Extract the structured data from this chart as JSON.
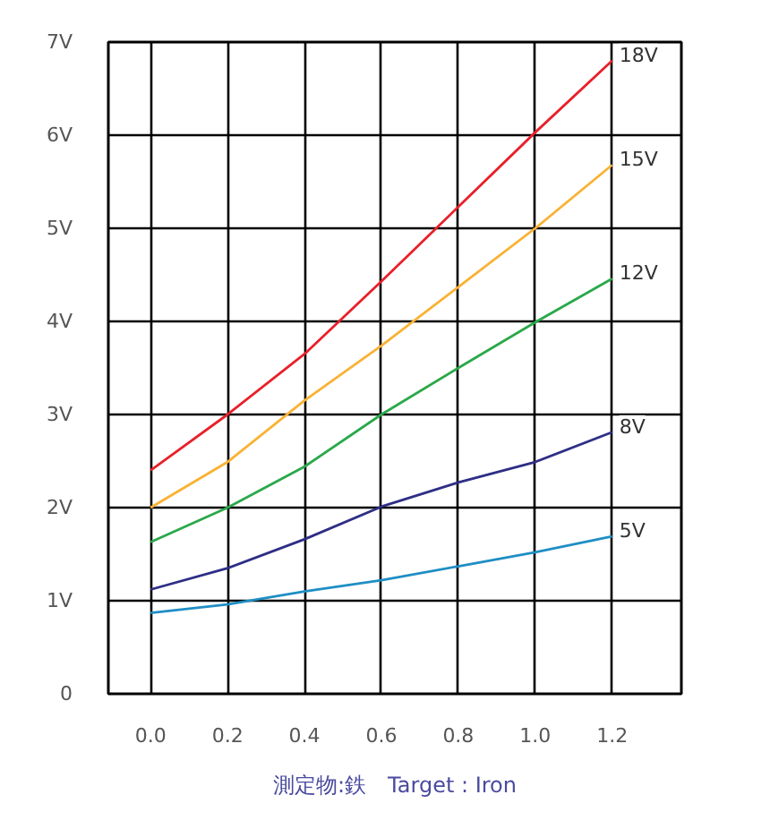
{
  "chart_data": {
    "type": "line",
    "xlabel": "測定物:鉄　Target : Iron",
    "x": [
      0.0,
      0.2,
      0.4,
      0.6,
      0.8,
      1.0,
      1.2
    ],
    "series": [
      {
        "name": "18V",
        "color": "#e8202a",
        "values": [
          2.4,
          3.0,
          3.65,
          4.43,
          5.23,
          6.03,
          6.8
        ]
      },
      {
        "name": "15V",
        "color": "#f9b233",
        "values": [
          2.0,
          2.49,
          3.15,
          3.74,
          4.37,
          5.0,
          5.68
        ]
      },
      {
        "name": "12V",
        "color": "#2aa84a",
        "values": [
          1.63,
          2.0,
          2.44,
          3.0,
          3.5,
          3.99,
          4.46
        ]
      },
      {
        "name": "8V",
        "color": "#2e2e86",
        "values": [
          1.12,
          1.35,
          1.66,
          2.01,
          2.27,
          2.49,
          2.81
        ]
      },
      {
        "name": "5V",
        "color": "#1f8ec4",
        "values": [
          0.87,
          0.96,
          1.1,
          1.22,
          1.37,
          1.52,
          1.69
        ]
      }
    ],
    "xlim": [
      -0.11,
      1.38
    ],
    "ylim": [
      0,
      7
    ],
    "xticks": [
      {
        "value": 0,
        "label": "0.0"
      },
      {
        "value": 0.2,
        "label": "0.2"
      },
      {
        "value": 0.4,
        "label": "0.4"
      },
      {
        "value": 0.6,
        "label": "0.6"
      },
      {
        "value": 0.8,
        "label": "0.8"
      },
      {
        "value": 1.0,
        "label": "1.0"
      },
      {
        "value": 1.2,
        "label": "1.2"
      }
    ],
    "yticks": [
      0,
      {
        "value": 1,
        "label": "1V"
      },
      {
        "value": 2,
        "label": "2V"
      },
      {
        "value": 3,
        "label": "3V"
      },
      {
        "value": 4,
        "label": "4V"
      },
      {
        "value": 5,
        "label": "5V"
      },
      {
        "value": 6,
        "label": "6V"
      },
      {
        "value": 7,
        "label": "7V"
      }
    ],
    "grid": true,
    "marker": "none",
    "line_style": "solid"
  }
}
